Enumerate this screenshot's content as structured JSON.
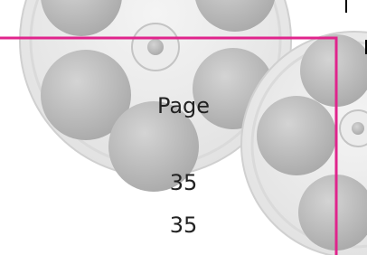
{
  "page": {
    "label": "Page",
    "numbers": [
      35,
      35
    ]
  }
}
